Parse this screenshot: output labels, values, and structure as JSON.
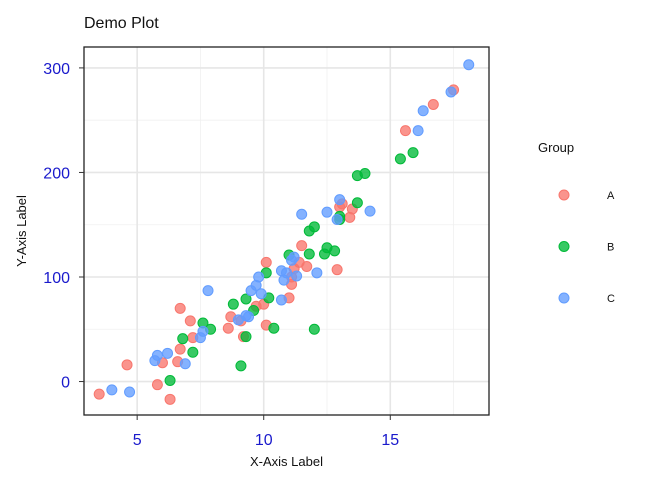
{
  "chart_data": {
    "type": "scatter",
    "title": "Demo Plot",
    "xlabel": "X-Axis Label",
    "ylabel": "Y-Axis Label",
    "xlim": [
      2.9,
      18.9
    ],
    "ylim": [
      -32,
      320
    ],
    "x_ticks": [
      5,
      10,
      15
    ],
    "y_ticks": [
      0,
      100,
      200,
      300
    ],
    "grid": true,
    "legend_title": "Group",
    "legend_position": "right",
    "tick_label_color": "#1a1acc",
    "series": [
      {
        "name": "A",
        "color": "#f8766d",
        "points": [
          [
            3.5,
            -12
          ],
          [
            4.6,
            16
          ],
          [
            5.8,
            -3
          ],
          [
            6.0,
            18
          ],
          [
            6.3,
            -17
          ],
          [
            6.6,
            19
          ],
          [
            6.7,
            31
          ],
          [
            6.7,
            70
          ],
          [
            7.1,
            58
          ],
          [
            7.2,
            42
          ],
          [
            8.6,
            51
          ],
          [
            8.7,
            62
          ],
          [
            9.1,
            58
          ],
          [
            9.2,
            43
          ],
          [
            9.7,
            72
          ],
          [
            10.0,
            74
          ],
          [
            10.1,
            54
          ],
          [
            10.1,
            114
          ],
          [
            11.0,
            80
          ],
          [
            11.1,
            93
          ],
          [
            11.1,
            100
          ],
          [
            11.2,
            108
          ],
          [
            11.4,
            114
          ],
          [
            11.5,
            130
          ],
          [
            11.7,
            110
          ],
          [
            12.9,
            107
          ],
          [
            13.0,
            167
          ],
          [
            13.1,
            170
          ],
          [
            13.4,
            157
          ],
          [
            13.5,
            165
          ],
          [
            15.6,
            240
          ],
          [
            16.7,
            265
          ],
          [
            17.5,
            279
          ]
        ]
      },
      {
        "name": "B",
        "color": "#00ba38",
        "points": [
          [
            6.3,
            1
          ],
          [
            6.8,
            41
          ],
          [
            7.2,
            28
          ],
          [
            7.6,
            56
          ],
          [
            7.9,
            50
          ],
          [
            8.8,
            74
          ],
          [
            9.1,
            15
          ],
          [
            9.3,
            79
          ],
          [
            9.3,
            43
          ],
          [
            9.6,
            68
          ],
          [
            10.1,
            104
          ],
          [
            10.2,
            80
          ],
          [
            10.4,
            51
          ],
          [
            11.0,
            121
          ],
          [
            11.8,
            144
          ],
          [
            11.8,
            122
          ],
          [
            12.0,
            50
          ],
          [
            12.0,
            148
          ],
          [
            12.4,
            122
          ],
          [
            12.5,
            128
          ],
          [
            12.8,
            125
          ],
          [
            13.0,
            158
          ],
          [
            13.0,
            155
          ],
          [
            13.7,
            171
          ],
          [
            13.7,
            197
          ],
          [
            14.0,
            199
          ],
          [
            15.4,
            213
          ],
          [
            15.9,
            219
          ]
        ]
      },
      {
        "name": "C",
        "color": "#619cff",
        "points": [
          [
            4.0,
            -8
          ],
          [
            4.7,
            -10
          ],
          [
            5.7,
            20
          ],
          [
            5.8,
            25
          ],
          [
            6.2,
            27
          ],
          [
            6.9,
            17
          ],
          [
            7.5,
            42
          ],
          [
            7.6,
            48
          ],
          [
            7.8,
            87
          ],
          [
            9.0,
            59
          ],
          [
            9.3,
            63
          ],
          [
            9.4,
            62
          ],
          [
            9.5,
            87
          ],
          [
            9.7,
            92
          ],
          [
            9.8,
            100
          ],
          [
            9.9,
            84
          ],
          [
            10.7,
            78
          ],
          [
            10.7,
            106
          ],
          [
            10.8,
            97
          ],
          [
            10.9,
            104
          ],
          [
            11.1,
            116
          ],
          [
            11.2,
            119
          ],
          [
            11.3,
            101
          ],
          [
            11.5,
            160
          ],
          [
            12.1,
            104
          ],
          [
            12.5,
            162
          ],
          [
            12.9,
            155
          ],
          [
            13.0,
            174
          ],
          [
            14.2,
            163
          ],
          [
            16.1,
            240
          ],
          [
            16.3,
            259
          ],
          [
            17.4,
            277
          ],
          [
            18.1,
            303
          ]
        ]
      }
    ]
  }
}
